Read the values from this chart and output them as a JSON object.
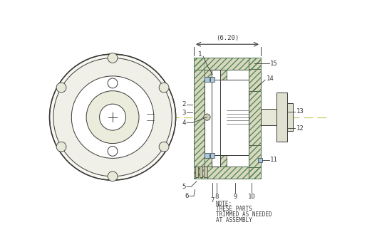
{
  "bg_color": "#ffffff",
  "line_color": "#3a3a3a",
  "hatch_color": "#5a8a5a",
  "centerline_color": "#c8c864",
  "dimension_label": "(6.20)",
  "note_lines": [
    "NOTE:",
    "THESE PARTS",
    "TRIMMED AS NEEDED",
    "AT ASSEMBLY"
  ]
}
